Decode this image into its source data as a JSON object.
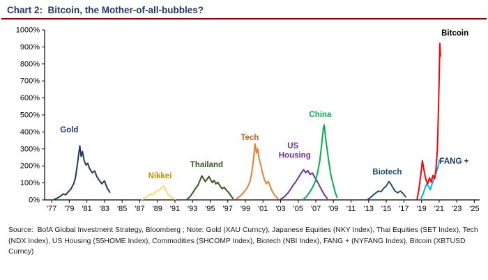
{
  "page": {
    "title": "Chart 2:  Bitcoin, the Mother-of-all-bubbles?",
    "source_note": "Source:  BofA Global Investment Strategy, Bloomberg ; Note: Gold (XAU Curncy), Japanese Equities (NKY Index), Thai Equities (SET Index), Tech (NDX Index), US Housing (S5HOME Index), Commodities (SHCOMP Index), Biotech (NBI Index), FANG + (NYFANG Index), Bitcoin (XBTUSD Curncy)",
    "colors": {
      "title": "#1F3864",
      "rule": "#990000",
      "background": "#FFFFFF",
      "axis": "#000000"
    }
  },
  "chart_data": {
    "type": "line",
    "title": "Chart 2: Bitcoin, the Mother-of-all-bubbles?",
    "xlabel": "",
    "ylabel": "",
    "xlim": [
      1976.2,
      2025.6
    ],
    "ylim": [
      0,
      1000
    ],
    "grid": false,
    "legend": "inline-series-labels",
    "y_ticks": [
      {
        "value": 0,
        "label": "0%"
      },
      {
        "value": 100,
        "label": "100%"
      },
      {
        "value": 200,
        "label": "200%"
      },
      {
        "value": 300,
        "label": "300%"
      },
      {
        "value": 400,
        "label": "400%"
      },
      {
        "value": 500,
        "label": "500%"
      },
      {
        "value": 600,
        "label": "600%"
      },
      {
        "value": 700,
        "label": "700%"
      },
      {
        "value": 800,
        "label": "800%"
      },
      {
        "value": 900,
        "label": "900%"
      },
      {
        "value": 1000,
        "label": "1000%"
      }
    ],
    "x_ticks": [
      {
        "value": 1977,
        "label": "'77"
      },
      {
        "value": 1979,
        "label": "'79"
      },
      {
        "value": 1981,
        "label": "'81"
      },
      {
        "value": 1983,
        "label": "'83"
      },
      {
        "value": 1985,
        "label": "'85"
      },
      {
        "value": 1987,
        "label": "'87"
      },
      {
        "value": 1989,
        "label": "'89"
      },
      {
        "value": 1991,
        "label": "'91"
      },
      {
        "value": 1993,
        "label": "'93"
      },
      {
        "value": 1995,
        "label": "'95"
      },
      {
        "value": 1997,
        "label": "'97"
      },
      {
        "value": 1999,
        "label": "'99"
      },
      {
        "value": 2001,
        "label": "'01"
      },
      {
        "value": 2003,
        "label": "'03"
      },
      {
        "value": 2005,
        "label": "'05"
      },
      {
        "value": 2007,
        "label": "'07"
      },
      {
        "value": 2009,
        "label": "'09"
      },
      {
        "value": 2011,
        "label": "'11"
      },
      {
        "value": 2013,
        "label": "'13"
      },
      {
        "value": 2015,
        "label": "'15"
      },
      {
        "value": 2017,
        "label": "'17"
      },
      {
        "value": 2019,
        "label": "'19"
      },
      {
        "value": 2021,
        "label": "'21"
      },
      {
        "value": 2023,
        "label": "'23"
      },
      {
        "value": 2025,
        "label": "'25"
      }
    ],
    "series": [
      {
        "id": "gold",
        "name": "Gold",
        "color": "#1F3864",
        "labels": [
          {
            "text": "Gold",
            "x": 1979.0,
            "y": 398,
            "anchor": "middle",
            "color": "#1F3864"
          }
        ],
        "points": [
          [
            1977.3,
            3
          ],
          [
            1977.7,
            12
          ],
          [
            1978.0,
            22
          ],
          [
            1978.3,
            35
          ],
          [
            1978.6,
            30
          ],
          [
            1978.9,
            48
          ],
          [
            1979.2,
            65
          ],
          [
            1979.5,
            95
          ],
          [
            1979.7,
            130
          ],
          [
            1979.9,
            200
          ],
          [
            1980.05,
            260
          ],
          [
            1980.2,
            318
          ],
          [
            1980.35,
            255
          ],
          [
            1980.5,
            285
          ],
          [
            1980.7,
            230
          ],
          [
            1980.9,
            205
          ],
          [
            1981.1,
            215
          ],
          [
            1981.3,
            185
          ],
          [
            1981.6,
            160
          ],
          [
            1981.9,
            170
          ],
          [
            1982.1,
            140
          ],
          [
            1982.4,
            115
          ],
          [
            1982.7,
            95
          ],
          [
            1983.0,
            112
          ],
          [
            1983.3,
            70
          ],
          [
            1983.6,
            45
          ]
        ]
      },
      {
        "id": "nikkei",
        "name": "Nikkei",
        "color": "#FFD966",
        "labels": [
          {
            "text": "Nikkei",
            "x": 1989.3,
            "y": 128,
            "anchor": "middle",
            "color": "#BF8F00"
          }
        ],
        "points": [
          [
            1987.3,
            3
          ],
          [
            1987.6,
            12
          ],
          [
            1987.9,
            22
          ],
          [
            1988.2,
            35
          ],
          [
            1988.5,
            30
          ],
          [
            1988.8,
            45
          ],
          [
            1989.1,
            55
          ],
          [
            1989.4,
            65
          ],
          [
            1989.7,
            82
          ],
          [
            1989.95,
            60
          ],
          [
            1990.15,
            38
          ],
          [
            1990.4,
            25
          ],
          [
            1990.7,
            12
          ],
          [
            1991.0,
            4
          ]
        ]
      },
      {
        "id": "thailand",
        "name": "Thailand",
        "color": "#385723",
        "labels": [
          {
            "text": "Thailand",
            "x": 1994.6,
            "y": 192,
            "anchor": "middle",
            "color": "#385723"
          }
        ],
        "points": [
          [
            1992.4,
            4
          ],
          [
            1992.7,
            18
          ],
          [
            1993.0,
            40
          ],
          [
            1993.3,
            65
          ],
          [
            1993.6,
            85
          ],
          [
            1993.85,
            115
          ],
          [
            1994.05,
            142
          ],
          [
            1994.25,
            125
          ],
          [
            1994.45,
            108
          ],
          [
            1994.65,
            122
          ],
          [
            1994.85,
            138
          ],
          [
            1995.05,
            118
          ],
          [
            1995.25,
            102
          ],
          [
            1995.45,
            114
          ],
          [
            1995.65,
            94
          ],
          [
            1995.85,
            104
          ],
          [
            1996.1,
            84
          ],
          [
            1996.35,
            66
          ],
          [
            1996.6,
            74
          ],
          [
            1996.85,
            56
          ],
          [
            1997.1,
            44
          ],
          [
            1997.35,
            24
          ],
          [
            1997.6,
            8
          ]
        ]
      },
      {
        "id": "tech",
        "name": "Tech",
        "color": "#ED7D31",
        "labels": [
          {
            "text": "Tech",
            "x": 1999.5,
            "y": 352,
            "anchor": "middle",
            "color": "#C55A11"
          }
        ],
        "points": [
          [
            1998.0,
            6
          ],
          [
            1998.3,
            18
          ],
          [
            1998.6,
            32
          ],
          [
            1998.9,
            50
          ],
          [
            1999.2,
            70
          ],
          [
            1999.5,
            105
          ],
          [
            1999.7,
            150
          ],
          [
            1999.85,
            205
          ],
          [
            2000.0,
            280
          ],
          [
            2000.1,
            330
          ],
          [
            2000.25,
            275
          ],
          [
            2000.4,
            300
          ],
          [
            2000.55,
            245
          ],
          [
            2000.7,
            215
          ],
          [
            2000.9,
            170
          ],
          [
            2001.1,
            130
          ],
          [
            2001.35,
            95
          ],
          [
            2001.6,
            110
          ],
          [
            2001.85,
            75
          ],
          [
            2002.1,
            45
          ],
          [
            2002.4,
            22
          ],
          [
            2002.7,
            8
          ]
        ]
      },
      {
        "id": "us-housing",
        "name": "US Housing",
        "color": "#7030A0",
        "labels": [
          {
            "text": "US",
            "x": 2004.4,
            "y": 303,
            "anchor": "middle",
            "color": "#7030A0"
          },
          {
            "text": "Housing",
            "x": 2004.6,
            "y": 248,
            "anchor": "middle",
            "color": "#7030A0"
          }
        ],
        "points": [
          [
            2003.0,
            4
          ],
          [
            2003.4,
            18
          ],
          [
            2003.8,
            38
          ],
          [
            2004.1,
            60
          ],
          [
            2004.4,
            85
          ],
          [
            2004.7,
            105
          ],
          [
            2005.0,
            130
          ],
          [
            2005.3,
            155
          ],
          [
            2005.6,
            178
          ],
          [
            2005.85,
            160
          ],
          [
            2006.1,
            172
          ],
          [
            2006.35,
            150
          ],
          [
            2006.6,
            158
          ],
          [
            2006.85,
            135
          ],
          [
            2007.1,
            115
          ],
          [
            2007.4,
            85
          ],
          [
            2007.7,
            55
          ],
          [
            2008.0,
            28
          ],
          [
            2008.3,
            8
          ]
        ]
      },
      {
        "id": "china",
        "name": "China",
        "color": "#00B050",
        "labels": [
          {
            "text": "China",
            "x": 2007.5,
            "y": 487,
            "anchor": "middle",
            "color": "#00B050"
          }
        ],
        "points": [
          [
            2005.6,
            4
          ],
          [
            2005.95,
            20
          ],
          [
            2006.3,
            45
          ],
          [
            2006.65,
            75
          ],
          [
            2006.95,
            110
          ],
          [
            2007.2,
            160
          ],
          [
            2007.45,
            230
          ],
          [
            2007.65,
            320
          ],
          [
            2007.85,
            420
          ],
          [
            2007.95,
            442
          ],
          [
            2008.1,
            370
          ],
          [
            2008.3,
            290
          ],
          [
            2008.5,
            215
          ],
          [
            2008.7,
            150
          ],
          [
            2008.95,
            95
          ],
          [
            2009.2,
            45
          ],
          [
            2009.4,
            15
          ]
        ]
      },
      {
        "id": "biotech",
        "name": "Biotech",
        "color": "#1F4E79",
        "labels": [
          {
            "text": "Biotech",
            "x": 2015.1,
            "y": 150,
            "anchor": "middle",
            "color": "#1F4E79"
          }
        ],
        "points": [
          [
            2012.9,
            3
          ],
          [
            2013.2,
            14
          ],
          [
            2013.5,
            28
          ],
          [
            2013.8,
            40
          ],
          [
            2014.1,
            52
          ],
          [
            2014.4,
            48
          ],
          [
            2014.7,
            68
          ],
          [
            2015.0,
            82
          ],
          [
            2015.3,
            108
          ],
          [
            2015.5,
            95
          ],
          [
            2015.75,
            72
          ],
          [
            2016.0,
            52
          ],
          [
            2016.3,
            42
          ],
          [
            2016.6,
            52
          ],
          [
            2016.9,
            38
          ],
          [
            2017.2,
            18
          ]
        ]
      },
      {
        "id": "fang",
        "name": "FANG +",
        "color": "#00B0F0",
        "labels": [
          {
            "text": "FANG +",
            "x": 2022.7,
            "y": 213,
            "anchor": "middle",
            "color": "#17375E"
          }
        ],
        "points": [
          [
            2018.9,
            3
          ],
          [
            2019.15,
            30
          ],
          [
            2019.4,
            70
          ],
          [
            2019.6,
            95
          ],
          [
            2019.8,
            80
          ],
          [
            2020.0,
            60
          ],
          [
            2020.2,
            95
          ],
          [
            2020.45,
            130
          ],
          [
            2020.7,
            165
          ],
          [
            2020.9,
            200
          ],
          [
            2021.05,
            235
          ]
        ]
      },
      {
        "id": "bitcoin",
        "name": "Bitcoin",
        "color": "#FF0000",
        "labels": [
          {
            "text": "Bitcoin",
            "x": 2022.8,
            "y": 968,
            "anchor": "middle",
            "color": "#000000"
          }
        ],
        "points": [
          [
            2018.5,
            5
          ],
          [
            2018.7,
            60
          ],
          [
            2018.9,
            140
          ],
          [
            2019.1,
            230
          ],
          [
            2019.3,
            170
          ],
          [
            2019.5,
            120
          ],
          [
            2019.7,
            95
          ],
          [
            2019.9,
            130
          ],
          [
            2020.1,
            105
          ],
          [
            2020.3,
            145
          ],
          [
            2020.5,
            125
          ],
          [
            2020.65,
            185
          ],
          [
            2020.8,
            300
          ],
          [
            2020.9,
            480
          ],
          [
            2021.0,
            700
          ],
          [
            2021.08,
            920
          ],
          [
            2021.15,
            845
          ]
        ]
      }
    ]
  }
}
